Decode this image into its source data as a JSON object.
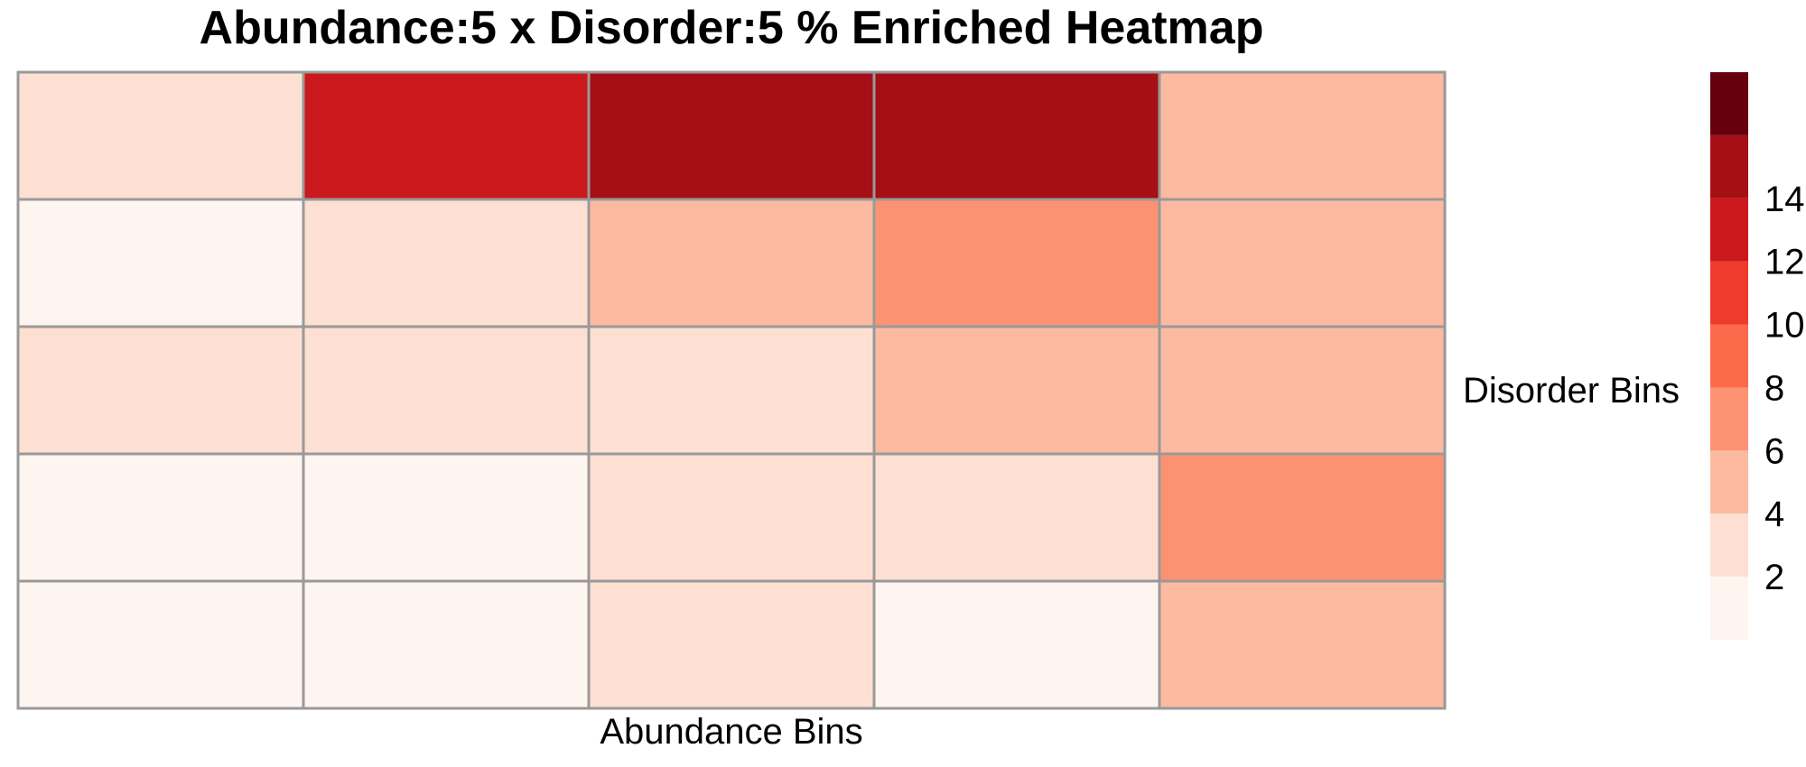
{
  "chart_data": {
    "type": "heatmap",
    "title": "Abundance:5 x Disorder:5 % Enriched Heatmap",
    "xlabel": "Abundance Bins",
    "ylabel": "Disorder Bins",
    "rows": 5,
    "cols": 5,
    "values": [
      [
        3,
        13,
        15,
        15,
        5
      ],
      [
        1,
        3,
        5,
        7,
        5
      ],
      [
        3,
        3,
        3,
        5,
        5
      ],
      [
        1,
        1,
        3,
        3,
        7
      ],
      [
        1,
        1,
        3,
        1,
        5
      ]
    ],
    "grid": true,
    "grid_color": "#999999",
    "legend": {
      "position": "right",
      "ticks": [
        2,
        4,
        6,
        8,
        10,
        12,
        14
      ],
      "bins": [
        {
          "min": 0,
          "max": 2,
          "color": "#fff5f0"
        },
        {
          "min": 2,
          "max": 4,
          "color": "#fee0d2"
        },
        {
          "min": 4,
          "max": 6,
          "color": "#fcbba1"
        },
        {
          "min": 6,
          "max": 8,
          "color": "#fc9272"
        },
        {
          "min": 8,
          "max": 10,
          "color": "#fb6a4a"
        },
        {
          "min": 10,
          "max": 12,
          "color": "#ef3b2c"
        },
        {
          "min": 12,
          "max": 14,
          "color": "#cb181d"
        },
        {
          "min": 14,
          "max": 16,
          "color": "#a50f15"
        },
        {
          "min": 16,
          "max": 18,
          "color": "#67000d"
        }
      ]
    }
  }
}
